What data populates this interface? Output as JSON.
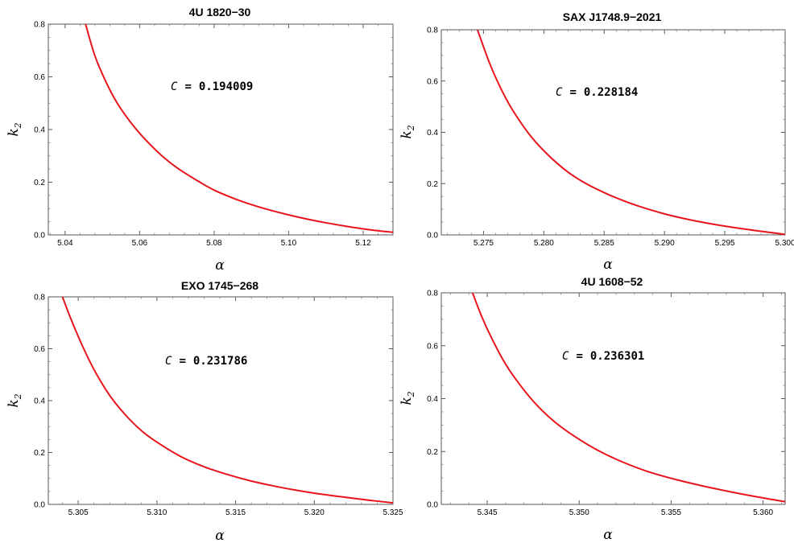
{
  "chart_data": [
    {
      "type": "line",
      "title": "4U 1820−30",
      "xlabel": "α",
      "ylabel": "k",
      "ylabel_sub": "2",
      "xlim": [
        5.0355,
        5.128
      ],
      "ylim": [
        0,
        0.8
      ],
      "xticks": [
        "5.04",
        "5.06",
        "5.08",
        "5.10",
        "5.12"
      ],
      "yticks": [
        "0.0",
        "0.2",
        "0.4",
        "0.6",
        "0.8"
      ],
      "annotation": {
        "var": "C",
        "eq": "=",
        "value": "0.194009"
      },
      "grid": false,
      "series": [
        {
          "color": "#e8141c",
          "x": [
            5.0455,
            5.048,
            5.051,
            5.054,
            5.058,
            5.062,
            5.066,
            5.07,
            5.075,
            5.08,
            5.085,
            5.09,
            5.095,
            5.1,
            5.105,
            5.11,
            5.115,
            5.12,
            5.125,
            5.128
          ],
          "y": [
            0.8,
            0.68,
            0.58,
            0.5,
            0.42,
            0.355,
            0.3,
            0.255,
            0.21,
            0.17,
            0.14,
            0.115,
            0.094,
            0.076,
            0.06,
            0.046,
            0.034,
            0.023,
            0.014,
            0.01
          ]
        }
      ]
    },
    {
      "type": "line",
      "title": "SAX J1748.9−2021",
      "xlabel": "α",
      "ylabel": "k",
      "ylabel_sub": "2",
      "xlim": [
        5.2715,
        5.3
      ],
      "ylim": [
        0,
        0.8
      ],
      "xticks": [
        "5.275",
        "5.280",
        "5.285",
        "5.290",
        "5.295",
        "5.300"
      ],
      "yticks": [
        "0.0",
        "0.2",
        "0.4",
        "0.6",
        "0.8"
      ],
      "annotation": {
        "var": "C",
        "eq": "=",
        "value": "0.228184"
      },
      "grid": false,
      "series": [
        {
          "color": "#e8141c",
          "x": [
            5.2745,
            5.2755,
            5.2765,
            5.2775,
            5.279,
            5.2805,
            5.282,
            5.2835,
            5.285,
            5.2865,
            5.288,
            5.29,
            5.292,
            5.294,
            5.296,
            5.298,
            5.2995,
            5.3
          ],
          "y": [
            0.8,
            0.67,
            0.565,
            0.48,
            0.38,
            0.305,
            0.245,
            0.2,
            0.165,
            0.135,
            0.11,
            0.082,
            0.06,
            0.042,
            0.027,
            0.014,
            0.005,
            0.002
          ]
        }
      ]
    },
    {
      "type": "line",
      "title": "EXO 1745−268",
      "xlabel": "α",
      "ylabel": "k",
      "ylabel_sub": "2",
      "xlim": [
        5.3031,
        5.325
      ],
      "ylim": [
        0,
        0.8
      ],
      "xticks": [
        "5.305",
        "5.310",
        "5.315",
        "5.320",
        "5.325"
      ],
      "yticks": [
        "0.0",
        "0.2",
        "0.4",
        "0.6",
        "0.8"
      ],
      "annotation": {
        "var": "C",
        "eq": "=",
        "value": "0.231786"
      },
      "grid": false,
      "series": [
        {
          "color": "#e8141c",
          "x": [
            5.304,
            5.3045,
            5.3052,
            5.306,
            5.307,
            5.308,
            5.309,
            5.31,
            5.3115,
            5.313,
            5.3145,
            5.316,
            5.3175,
            5.319,
            5.3205,
            5.322,
            5.3235,
            5.325
          ],
          "y": [
            0.8,
            0.72,
            0.62,
            0.52,
            0.42,
            0.345,
            0.285,
            0.24,
            0.185,
            0.145,
            0.115,
            0.09,
            0.07,
            0.053,
            0.039,
            0.027,
            0.016,
            0.006
          ]
        }
      ]
    },
    {
      "type": "line",
      "title": "4U 1608−52",
      "xlabel": "α",
      "ylabel": "k",
      "ylabel_sub": "2",
      "xlim": [
        5.3425,
        5.3612
      ],
      "ylim": [
        0,
        0.8
      ],
      "xticks": [
        "5.345",
        "5.350",
        "5.355",
        "5.360"
      ],
      "yticks": [
        "0.0",
        "0.2",
        "0.4",
        "0.6",
        "0.8"
      ],
      "annotation": {
        "var": "C",
        "eq": "=",
        "value": "0.236301"
      },
      "grid": false,
      "series": [
        {
          "color": "#e8141c",
          "x": [
            5.3442,
            5.3447,
            5.3453,
            5.346,
            5.3468,
            5.3477,
            5.3487,
            5.3498,
            5.351,
            5.3523,
            5.3537,
            5.3552,
            5.3567,
            5.3582,
            5.3597,
            5.3612
          ],
          "y": [
            0.8,
            0.71,
            0.62,
            0.53,
            0.45,
            0.375,
            0.31,
            0.255,
            0.205,
            0.162,
            0.125,
            0.095,
            0.07,
            0.048,
            0.028,
            0.01
          ]
        }
      ]
    }
  ]
}
